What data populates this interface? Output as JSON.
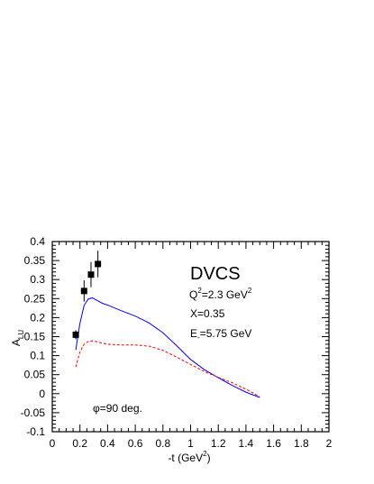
{
  "chart_data": {
    "type": "line",
    "xlabel": {
      "main": "-t (GeV",
      "sup": "2",
      "tail": ")"
    },
    "ylabel": {
      "main": "A",
      "sub": "LU"
    },
    "xlim": [
      0,
      2
    ],
    "ylim": [
      -0.1,
      0.4
    ],
    "xticks": [
      0,
      0.2,
      0.4,
      0.6,
      0.8,
      1,
      1.2,
      1.4,
      1.6,
      1.8,
      2
    ],
    "xtick_labels": [
      "0",
      "0.2",
      "0.4",
      "0.6",
      "0.8",
      "1",
      "1.2",
      "1.4",
      "1.6",
      "1.8",
      "2"
    ],
    "yticks": [
      -0.1,
      -0.05,
      0,
      0.05,
      0.1,
      0.15,
      0.2,
      0.25,
      0.3,
      0.35,
      0.4
    ],
    "ytick_labels": [
      "-0.1",
      "-0.05",
      "0",
      "0.05",
      "0.1",
      "0.15",
      "0.2",
      "0.25",
      "0.3",
      "0.35",
      "0.4"
    ],
    "grid": false,
    "annotations": {
      "title": "DVCS",
      "q2": {
        "main": "Q",
        "sup": "2",
        "value": "=2.3 GeV",
        "sup2": "2"
      },
      "x": "X=0.35",
      "energy": {
        "main": "E",
        "sub": "-",
        "value": "=5.75 GeV"
      },
      "phi": {
        "symbol": "φ",
        "value": "=90 deg."
      }
    },
    "series": [
      {
        "style": "solid",
        "color": "#0000ff",
        "x": [
          0.17,
          0.2,
          0.23,
          0.26,
          0.29,
          0.32,
          0.36,
          0.4,
          0.5,
          0.6,
          0.7,
          0.8,
          0.9,
          1.0,
          1.1,
          1.2,
          1.3,
          1.4,
          1.5
        ],
        "y": [
          0.115,
          0.185,
          0.232,
          0.249,
          0.252,
          0.246,
          0.238,
          0.233,
          0.218,
          0.204,
          0.186,
          0.16,
          0.126,
          0.09,
          0.063,
          0.042,
          0.022,
          0.004,
          -0.01
        ]
      },
      {
        "style": "dashed",
        "color": "#ff0000",
        "x": [
          0.17,
          0.2,
          0.23,
          0.26,
          0.29,
          0.32,
          0.36,
          0.4,
          0.5,
          0.6,
          0.7,
          0.8,
          0.9,
          1.0,
          1.1,
          1.2,
          1.3,
          1.4,
          1.5
        ],
        "y": [
          0.07,
          0.11,
          0.13,
          0.137,
          0.139,
          0.137,
          0.133,
          0.13,
          0.128,
          0.128,
          0.125,
          0.114,
          0.096,
          0.077,
          0.058,
          0.043,
          0.029,
          0.012,
          -0.008
        ]
      },
      {
        "type": "points",
        "style": "markers",
        "color": "#000000",
        "x": [
          0.17,
          0.23,
          0.28,
          0.33
        ],
        "y": [
          0.155,
          0.27,
          0.313,
          0.341
        ],
        "yerr": [
          0.012,
          0.028,
          0.033,
          0.035
        ]
      }
    ]
  }
}
